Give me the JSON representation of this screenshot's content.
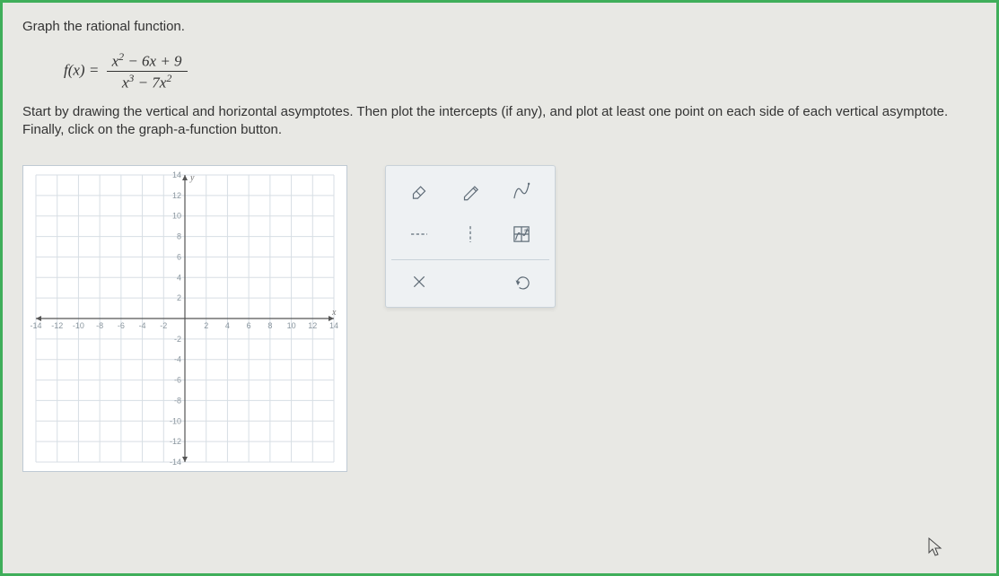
{
  "problem": {
    "title": "Graph the rational function.",
    "function_lhs": "f(x) =",
    "numerator_html": "x<sup>2</sup> − 6x + 9",
    "denominator_html": "x<sup>3</sup> − 7x<sup>2</sup>",
    "instructions": "Start by drawing the vertical and horizontal asymptotes. Then plot the intercepts (if any), and plot at least one point on each side of each vertical asymptote. Finally, click on the graph-a-function button."
  },
  "graph": {
    "xlim": [
      -14,
      14
    ],
    "ylim": [
      -14,
      14
    ],
    "tick_step": 2,
    "grid_color": "#d7dee4",
    "axis_color": "#555555",
    "background_color": "#ffffff",
    "tick_label_color": "#8a969f",
    "tick_label_fontsize": 9,
    "axis_label_x": "x",
    "axis_label_y": "y"
  },
  "tools": {
    "eraser": "eraser-icon",
    "pencil": "pencil-icon",
    "curve": "curve-icon",
    "h_asymptote": "horizontal-asymptote-icon",
    "v_asymptote": "vertical-asymptote-icon",
    "graph_function": "graph-a-function-icon",
    "clear": "clear-icon",
    "undo": "undo-icon"
  },
  "colors": {
    "page_border": "#3fae5a",
    "page_bg": "#e8e8e4",
    "panel_bg": "#eef1f3",
    "panel_border": "#c9d2d9",
    "tool_icon": "#5f6c77"
  }
}
